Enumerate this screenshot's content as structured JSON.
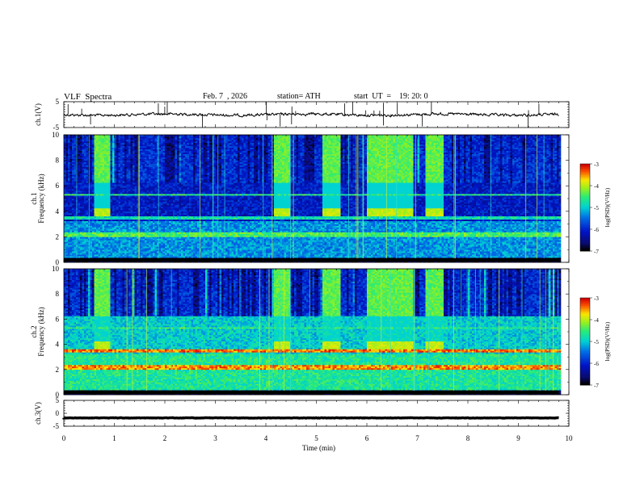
{
  "header": {
    "title": "VLF  Spectra",
    "date": "Feb. 7  , 2026",
    "station": "station= ATH",
    "start_ut": "start  UT  =    19: 20: 0"
  },
  "chart_data": [
    {
      "type": "line",
      "name": "ch1-voltage",
      "ylabel": "ch.1(V)",
      "ylim": [
        -5,
        5
      ],
      "yticks": [
        "5",
        "-5"
      ],
      "xlim": [
        0,
        10
      ],
      "level": 0,
      "series_color": "#000000"
    },
    {
      "type": "heatmap",
      "name": "ch1-spectrogram",
      "ylabel": "ch.1\nFrequency  (kHz)",
      "ylim": [
        0,
        10
      ],
      "yticks": [
        "0",
        "2",
        "4",
        "6",
        "8",
        "10"
      ],
      "xlim": [
        0,
        10
      ],
      "colorbar": {
        "label": "log(PSD)(V²/Hz)",
        "ticks": [
          "-3",
          "-4",
          "-5",
          "-6",
          "-7"
        ],
        "range": [
          -7,
          -3
        ]
      },
      "bright_intervals_min": [
        [
          0.6,
          0.9
        ],
        [
          4.15,
          4.45
        ],
        [
          5.1,
          5.45
        ],
        [
          6.0,
          6.9
        ],
        [
          7.15,
          7.5
        ]
      ],
      "emission_band_khz": [
        3.6,
        4.3
      ]
    },
    {
      "type": "heatmap",
      "name": "ch2-spectrogram",
      "ylabel": "ch.2\nFrequency  (kHz)",
      "ylim": [
        0,
        10
      ],
      "yticks": [
        "0",
        "2",
        "4",
        "6",
        "8",
        "10"
      ],
      "xlim": [
        0,
        10
      ],
      "colorbar": {
        "label": "log(PSD)(V²/Hz)",
        "ticks": [
          "-3",
          "-4",
          "-5",
          "-6",
          "-7"
        ],
        "range": [
          -7,
          -3
        ]
      },
      "bright_intervals_min": [
        [
          0.6,
          0.9
        ],
        [
          4.15,
          4.45
        ],
        [
          5.1,
          5.45
        ],
        [
          6.0,
          6.9
        ],
        [
          7.15,
          7.5
        ]
      ],
      "emission_band_khz": [
        3.6,
        4.3
      ]
    },
    {
      "type": "line",
      "name": "ch3-voltage",
      "ylabel": "ch.3(V)",
      "ylim": [
        -5,
        5
      ],
      "yticks": [
        "5",
        "0",
        "-5"
      ],
      "xlim": [
        0,
        10
      ],
      "level": -1.8,
      "series_color": "#000000"
    }
  ],
  "xaxis": {
    "label": "Time  (min)",
    "ticks": [
      "0",
      "1",
      "2",
      "3",
      "4",
      "5",
      "6",
      "7",
      "8",
      "9",
      "10"
    ],
    "data_end_min": 9.8
  }
}
